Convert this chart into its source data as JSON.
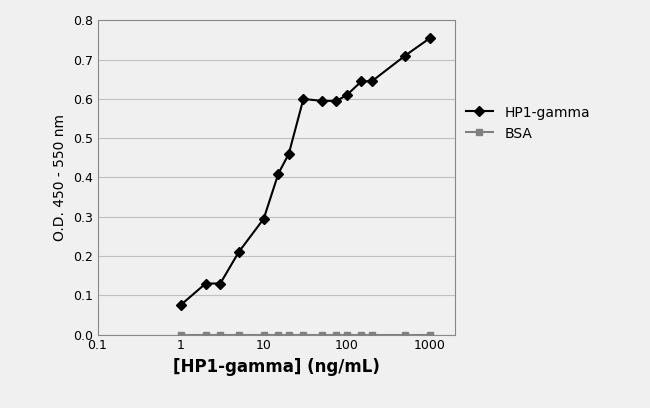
{
  "hp1_gamma_x": [
    1,
    2,
    3,
    5,
    10,
    15,
    20,
    30,
    50,
    75,
    100,
    150,
    200,
    500,
    1000
  ],
  "hp1_gamma_y": [
    0.075,
    0.13,
    0.13,
    0.21,
    0.295,
    0.41,
    0.46,
    0.6,
    0.595,
    0.595,
    0.61,
    0.645,
    0.645,
    0.71,
    0.755
  ],
  "bsa_x": [
    1,
    2,
    3,
    5,
    10,
    15,
    20,
    30,
    50,
    75,
    100,
    150,
    200,
    500,
    1000
  ],
  "bsa_y": [
    0.0,
    0.0,
    0.0,
    0.0,
    0.0,
    0.0,
    0.0,
    0.0,
    0.0,
    0.0,
    0.0,
    0.0,
    0.0,
    0.0,
    0.0
  ],
  "hp1_color": "#000000",
  "bsa_color": "#808080",
  "line_width": 1.5,
  "marker_hp1": "D",
  "marker_bsa": "s",
  "marker_size_hp1": 5,
  "marker_size_bsa": 5,
  "xlabel": "[HP1-gamma] (ng/mL)",
  "ylabel": "O.D. 450 - 550 nm",
  "ylim": [
    0,
    0.8
  ],
  "xlim": [
    0.1,
    2000
  ],
  "yticks": [
    0.0,
    0.1,
    0.2,
    0.3,
    0.4,
    0.5,
    0.6,
    0.7,
    0.8
  ],
  "xtick_labels": [
    "0.1",
    "1",
    "10",
    "100",
    "1000"
  ],
  "xtick_positions": [
    0.1,
    1,
    10,
    100,
    1000
  ],
  "legend_labels": [
    "HP1-gamma",
    "BSA"
  ],
  "grid_color": "#c0c0c0",
  "background_color": "#f0f0f0",
  "xlabel_fontsize": 12,
  "ylabel_fontsize": 10,
  "tick_fontsize": 9,
  "legend_fontsize": 10
}
